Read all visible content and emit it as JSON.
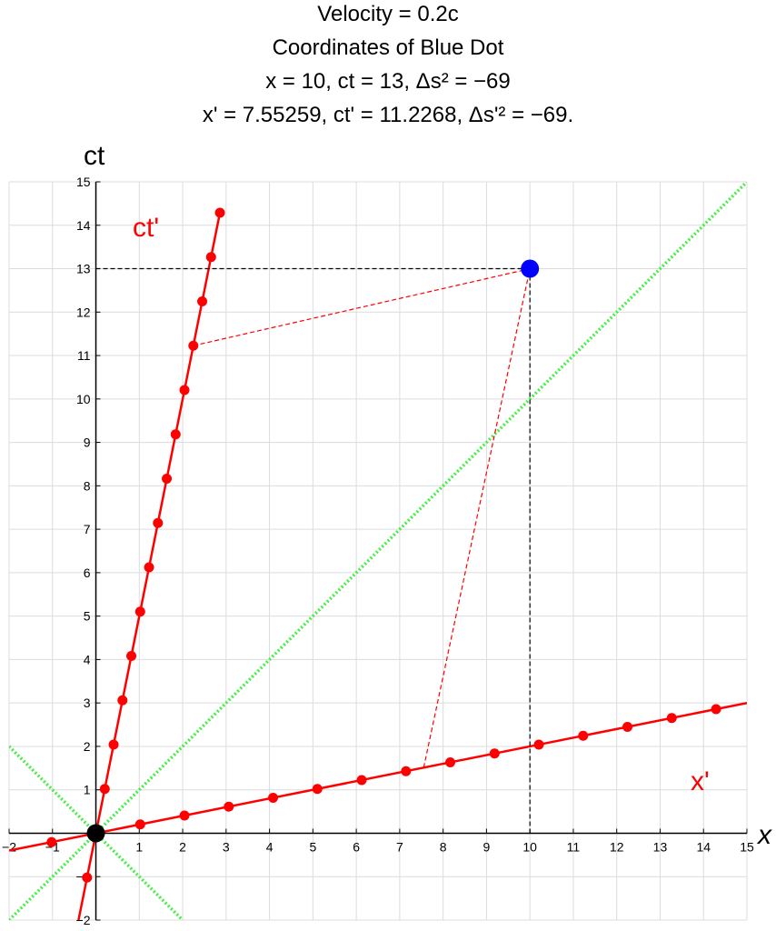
{
  "title_lines": [
    "Velocity = 0.2c",
    "Coordinates of Blue Dot",
    "x = 10, ct = 13, Δs² = −69",
    "x' = 7.55259, ct' = 11.2268, Δs'² = −69."
  ],
  "chart_data": {
    "type": "line",
    "xlabel": "x",
    "ylabel": "ct",
    "xlim": [
      -2,
      15
    ],
    "ylim": [
      -2,
      15
    ],
    "grid": true,
    "x_ticks": [
      -2,
      -1,
      1,
      2,
      3,
      4,
      5,
      6,
      7,
      8,
      9,
      10,
      11,
      12,
      13,
      14,
      15
    ],
    "y_ticks": [
      -2,
      -1,
      1,
      2,
      3,
      4,
      5,
      6,
      7,
      8,
      9,
      10,
      11,
      12,
      13,
      14,
      15
    ],
    "velocity": 0.2,
    "series": [
      {
        "name": "ct'",
        "color": "#ff0000",
        "kind": "line",
        "x": [
          -0.406,
          2.871
        ],
        "y": [
          -2.03,
          14.355
        ]
      },
      {
        "name": "x'",
        "color": "#ff0000",
        "kind": "line",
        "x": [
          -2,
          15
        ],
        "y": [
          -0.4,
          3.0
        ]
      },
      {
        "kind": "light-cone",
        "color": "#44ee44",
        "x": [
          -2,
          15
        ],
        "y": [
          -2,
          15
        ]
      },
      {
        "kind": "light-cone",
        "color": "#44ee44",
        "x": [
          -2,
          2
        ],
        "y": [
          2,
          -2
        ]
      }
    ],
    "ct_prime_ticks": {
      "x": [
        -0.2041,
        0.2041,
        0.4082,
        0.6124,
        0.8165,
        1.0206,
        1.2247,
        1.4289,
        1.633,
        1.8371,
        2.0412,
        2.2454,
        2.4495,
        2.6536,
        2.8577
      ],
      "y": [
        -1.0206,
        1.0206,
        2.0412,
        3.0619,
        4.0825,
        5.1031,
        6.1237,
        7.1443,
        8.165,
        9.1856,
        10.2062,
        11.2268,
        12.2474,
        13.2681,
        14.2887
      ]
    },
    "x_prime_ticks": {
      "x": [
        -1.0206,
        1.0206,
        2.0412,
        3.0619,
        4.0825,
        5.1031,
        6.1237,
        7.1443,
        8.165,
        9.1856,
        10.2062,
        11.2268,
        12.2474,
        13.2681,
        14.2887
      ],
      "y": [
        -0.2041,
        0.2041,
        0.4082,
        0.6124,
        0.8165,
        1.0206,
        1.2247,
        1.4289,
        1.633,
        1.8371,
        2.0412,
        2.2454,
        2.4495,
        2.6536,
        2.8577
      ]
    },
    "blue_dot": {
      "x": 10,
      "ct": 13,
      "color": "#0000ff"
    },
    "origin_dot": {
      "x": 0,
      "ct": 0,
      "color": "#000000"
    },
    "projection_ct_prime": {
      "x": 2.2454,
      "y": 11.2268
    },
    "projection_x_prime": {
      "x": 7.5526,
      "y": 1.5105
    },
    "prime_labels": {
      "ct_axis": "ct'",
      "x_axis": "x'"
    }
  }
}
